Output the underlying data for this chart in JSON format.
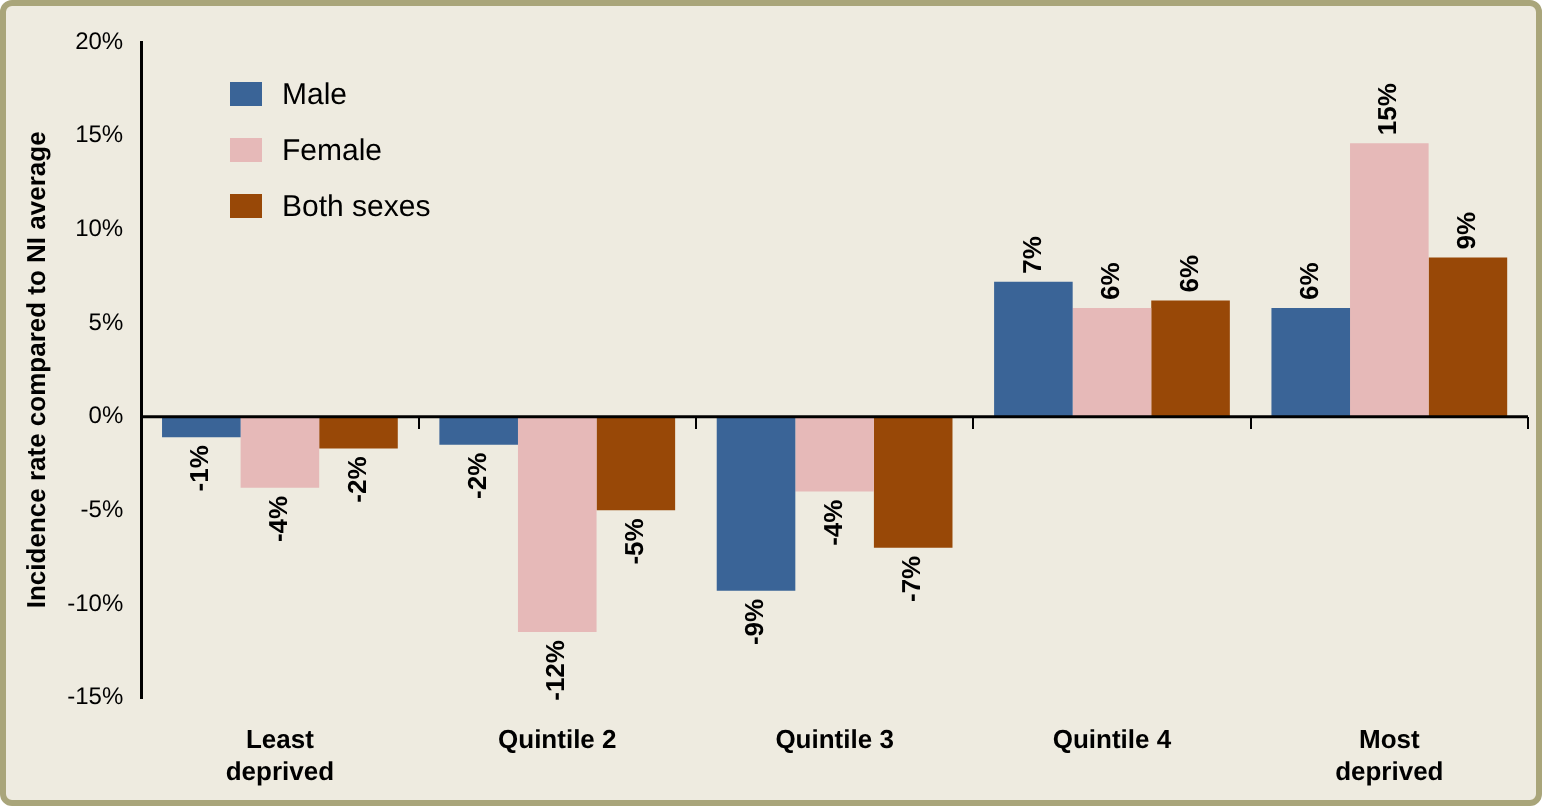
{
  "chart_data": {
    "type": "bar",
    "ylabel": "Incidence rate compared to NI average",
    "categories": [
      "Least deprived",
      "Quintile 2",
      "Quintile 3",
      "Quintile 4",
      "Most deprived"
    ],
    "series": [
      {
        "name": "Male",
        "color": "#3a6497",
        "values": [
          -1.1,
          -1.5,
          -9.3,
          7.2,
          5.8
        ],
        "value_labels": [
          "-1%",
          "-2%",
          "-9%",
          "7%",
          "6%"
        ]
      },
      {
        "name": "Female",
        "color": "#e6b9b8",
        "values": [
          -3.8,
          -11.5,
          -4.0,
          5.8,
          14.6
        ],
        "value_labels": [
          "-4%",
          "-12%",
          "-4%",
          "6%",
          "15%"
        ]
      },
      {
        "name": "Both sexes",
        "color": "#984807",
        "values": [
          -1.7,
          -5.0,
          -7.0,
          6.2,
          8.5
        ],
        "value_labels": [
          "-2%",
          "-5%",
          "-7%",
          "6%",
          "9%"
        ]
      }
    ],
    "ylim": [
      -15,
      20
    ],
    "yticks": [
      {
        "value": -15,
        "label": "-15%"
      },
      {
        "value": -10,
        "label": "-10%"
      },
      {
        "value": -5,
        "label": "-5%"
      },
      {
        "value": 0,
        "label": "0%"
      },
      {
        "value": 5,
        "label": "5%"
      },
      {
        "value": 10,
        "label": "10%"
      },
      {
        "value": 15,
        "label": "15%"
      },
      {
        "value": 20,
        "label": "20%"
      }
    ],
    "ref_lines": [
      {
        "axis": "y",
        "value": 0,
        "color": "#000000"
      }
    ],
    "grid": false,
    "legend": "top left"
  }
}
